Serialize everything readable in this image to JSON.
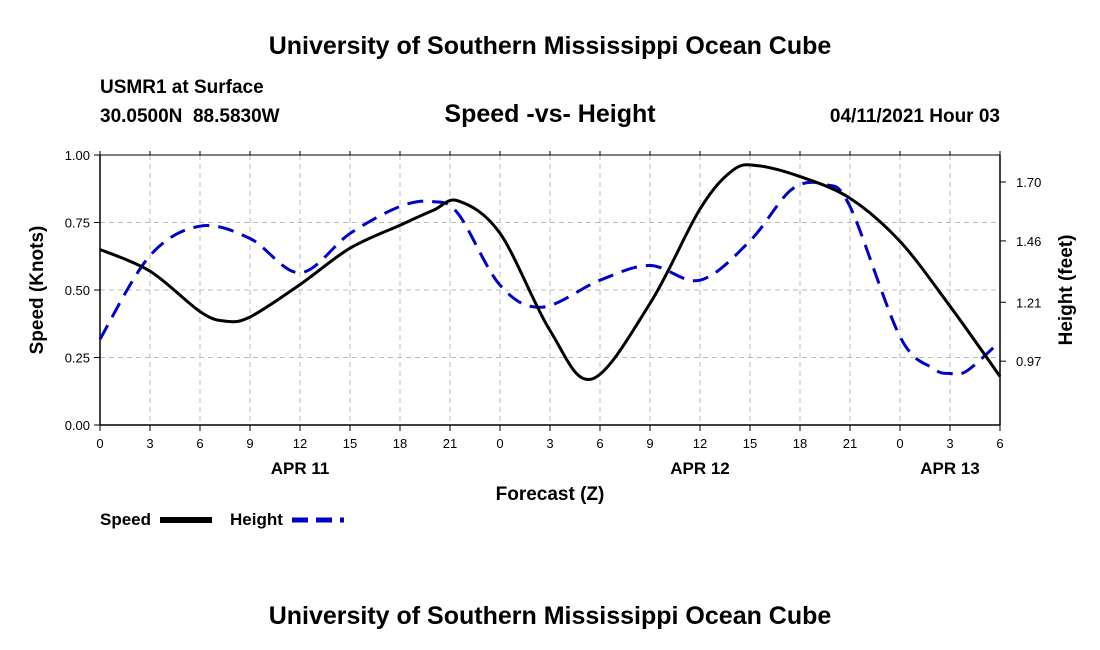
{
  "header": {
    "top_title": "University of Southern Mississippi Ocean Cube",
    "station": "USMR1 at Surface",
    "coords": "30.0500N  88.5830W",
    "plot_title": "Speed -vs- Height",
    "datetime": "04/11/2021 Hour 03",
    "bottom_title": "University of Southern Mississippi Ocean Cube"
  },
  "legend": {
    "speed_label": "Speed",
    "height_label": "Height"
  },
  "colors": {
    "speed": "#000000",
    "height": "#0000cc",
    "grid": "#bbbbbb"
  },
  "chart_data": {
    "type": "line",
    "title": "Speed -vs- Height",
    "xlabel": "Forecast (Z)",
    "ylabel": "Speed (Knots)",
    "y2label": "Height (feet)",
    "x_hours_range": [
      0,
      54
    ],
    "x_tick_hours": [
      0,
      3,
      6,
      9,
      12,
      15,
      18,
      21,
      24,
      27,
      30,
      33,
      36,
      39,
      42,
      45,
      48,
      51,
      54
    ],
    "x_tick_labels": [
      "0",
      "3",
      "6",
      "9",
      "12",
      "15",
      "18",
      "21",
      "0",
      "3",
      "6",
      "9",
      "12",
      "15",
      "18",
      "21",
      "0",
      "3",
      "6"
    ],
    "date_labels": [
      {
        "label": "APR 11",
        "hour": 12
      },
      {
        "label": "APR 12",
        "hour": 36
      },
      {
        "label": "APR 13",
        "hour": 51
      }
    ],
    "ylim": [
      0,
      1
    ],
    "y_ticks": [
      0,
      0.25,
      0.5,
      0.75,
      1.0
    ],
    "y_tick_labels": [
      "0.00",
      "0.25",
      "0.50",
      "0.75",
      "1.00"
    ],
    "y2lim": [
      0.71,
      1.81
    ],
    "y2_ticks": [
      0.97,
      1.21,
      1.46,
      1.7
    ],
    "y2_tick_labels": [
      "0.97",
      "1.21",
      "1.46",
      "1.70"
    ],
    "grid": true,
    "series": [
      {
        "name": "Speed",
        "axis": "left",
        "style": "solid",
        "x": [
          0,
          3,
          6,
          7.5,
          9,
          12,
          15,
          18,
          20,
          21.5,
          24,
          27,
          29.5,
          33,
          36,
          38,
          39.5,
          42,
          45,
          48,
          51,
          54
        ],
        "values": [
          0.65,
          0.57,
          0.42,
          0.385,
          0.4,
          0.52,
          0.655,
          0.74,
          0.795,
          0.83,
          0.71,
          0.35,
          0.17,
          0.45,
          0.8,
          0.945,
          0.96,
          0.92,
          0.84,
          0.68,
          0.44,
          0.18
        ]
      },
      {
        "name": "Height",
        "axis": "right",
        "style": "dashed",
        "x": [
          0,
          3,
          6,
          9,
          12,
          15,
          18,
          20,
          21.5,
          24,
          26.5,
          30,
          33,
          36,
          39,
          41.5,
          43.5,
          45,
          48,
          50,
          51,
          52,
          54
        ],
        "values": [
          1.06,
          1.4,
          1.52,
          1.47,
          1.33,
          1.49,
          1.6,
          1.62,
          1.57,
          1.28,
          1.19,
          1.3,
          1.36,
          1.3,
          1.46,
          1.67,
          1.69,
          1.6,
          1.07,
          0.94,
          0.92,
          0.93,
          1.05
        ]
      }
    ]
  }
}
